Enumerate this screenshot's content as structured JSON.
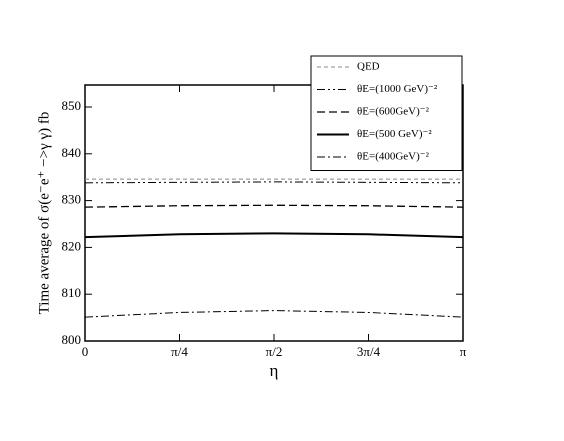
{
  "chart_data": {
    "type": "line",
    "xlabel": "η",
    "ylabel": "Time average of  σ(e⁻e⁺ −>γ γ)  fb",
    "xlim": [
      0,
      3.14159
    ],
    "xticks": [
      0,
      {
        "value": 0.7854,
        "label": "π/4"
      },
      {
        "value": 1.5708,
        "label": "π/2"
      },
      {
        "value": 2.3562,
        "label": "3π/4"
      },
      {
        "value": 3.14159,
        "label": "π"
      }
    ],
    "ylim": [
      800,
      854.7
    ],
    "yticks": [
      800,
      810,
      820,
      830,
      840,
      850
    ],
    "x": [
      0,
      0.7854,
      1.5708,
      2.3562,
      3.14159
    ],
    "series": [
      {
        "name": "QED",
        "color": "#888888",
        "linestyle": "dashed",
        "width": 1,
        "values": [
          834.6,
          834.6,
          834.6,
          834.6,
          834.6
        ]
      },
      {
        "name": "θE=(1000 GeV)⁻²",
        "color": "#000000",
        "linestyle": "dashdotdot",
        "width": 1,
        "values": [
          833.8,
          833.9,
          834.0,
          833.9,
          833.8
        ]
      },
      {
        "name": "θE=(600GeV)⁻²",
        "color": "#000000",
        "linestyle": "longdash",
        "width": 1.3,
        "values": [
          828.6,
          828.9,
          829.0,
          828.9,
          828.6
        ]
      },
      {
        "name": "θE=(500 GeV)⁻²",
        "color": "#000000",
        "linestyle": "solid",
        "width": 2,
        "values": [
          822.2,
          822.8,
          823.0,
          822.8,
          822.2
        ]
      },
      {
        "name": "θE=(400GeV)⁻²",
        "color": "#000000",
        "linestyle": "dashdot",
        "width": 1,
        "values": [
          805.1,
          806.1,
          806.5,
          806.1,
          805.1
        ]
      }
    ],
    "legend": "upper right"
  }
}
